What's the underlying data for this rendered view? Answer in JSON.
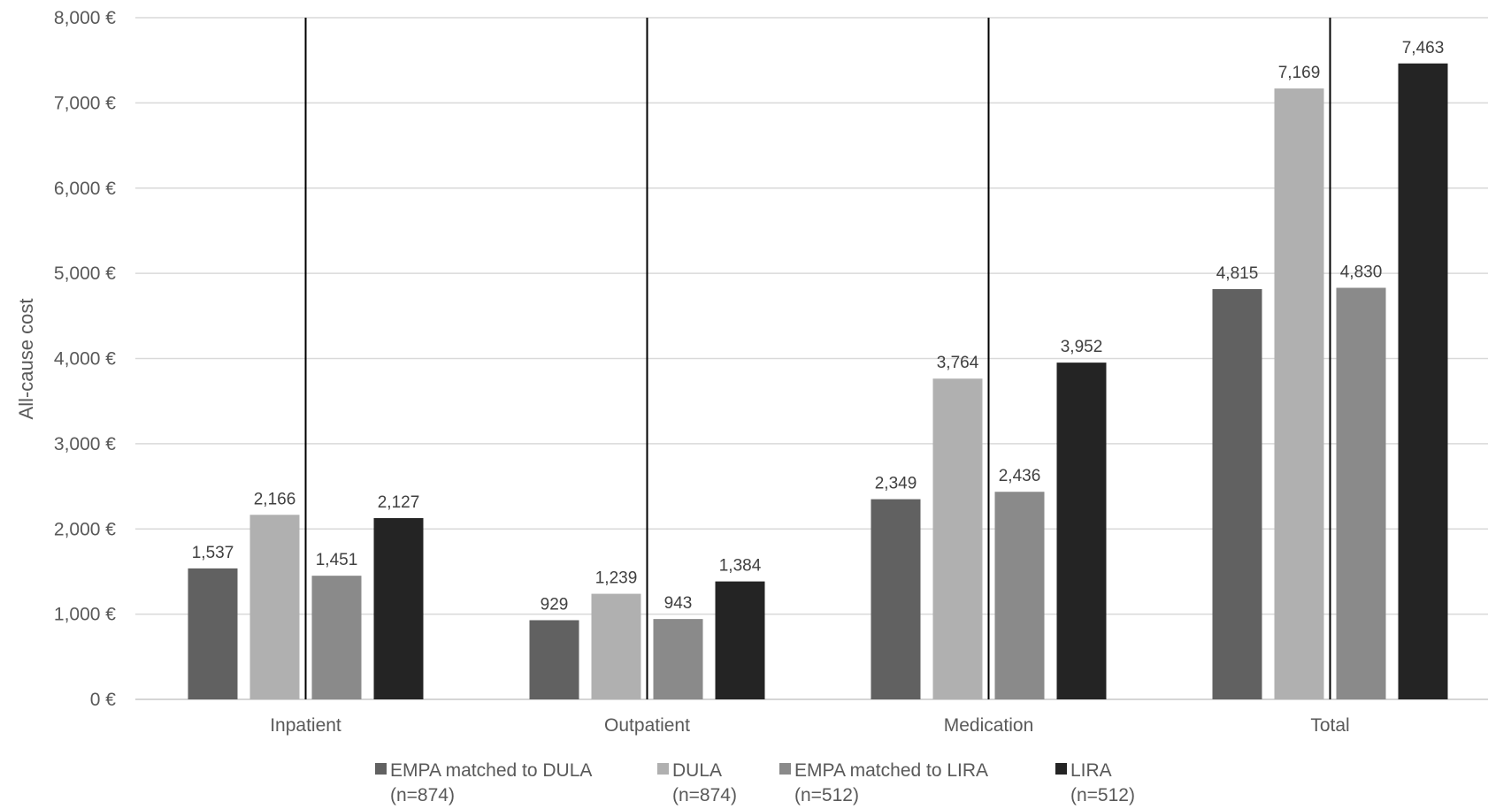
{
  "chart_data": {
    "type": "bar",
    "title": "",
    "xlabel": "",
    "ylabel": "All-cause cost",
    "ylim": [
      0,
      8000
    ],
    "y_ticks": [
      0,
      1000,
      2000,
      3000,
      4000,
      5000,
      6000,
      7000,
      8000
    ],
    "y_tick_labels": [
      "0 €",
      "1,000 €",
      "2,000 €",
      "3,000 €",
      "4,000 €",
      "5,000 €",
      "6,000 €",
      "7,000 €",
      "8,000 €"
    ],
    "grid": true,
    "legend_position": "bottom",
    "categories": [
      "Inpatient",
      "Outpatient",
      "Medication",
      "Total"
    ],
    "series": [
      {
        "name": "EMPA matched to DULA",
        "name_line2": "(n=874)",
        "color": "#616161",
        "values": [
          1537,
          929,
          2349,
          4815
        ],
        "labels": [
          "1,537",
          "929",
          "2,349",
          "4,815"
        ]
      },
      {
        "name": "DULA",
        "name_line2": "(n=874)",
        "color": "#b0b0b0",
        "values": [
          2166,
          1239,
          3764,
          7169
        ],
        "labels": [
          "2,166",
          "1,239",
          "3,764",
          "7,169"
        ]
      },
      {
        "name": "EMPA matched to LIRA",
        "name_line2": "(n=512)",
        "color": "#8a8a8a",
        "values": [
          1451,
          943,
          2436,
          4830
        ],
        "labels": [
          "1,451",
          "943",
          "2,436",
          "4,830"
        ]
      },
      {
        "name": "LIRA",
        "name_line2": "(n=512)",
        "color": "#242424",
        "values": [
          2127,
          1384,
          3952,
          7463
        ],
        "labels": [
          "2,127",
          "1,384",
          "3,952",
          "7,463"
        ]
      }
    ]
  }
}
